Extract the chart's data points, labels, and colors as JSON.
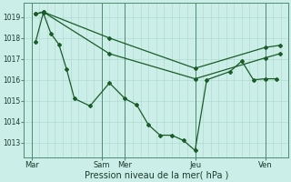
{
  "background_color": "#cceee8",
  "grid_color": "#aad8d0",
  "line_color": "#1a5c28",
  "marker": "D",
  "marker_size": 2.0,
  "line_width": 0.9,
  "xlabel": "Pression niveau de la mer( hPa )",
  "xlabel_fontsize": 7,
  "ytick_labels": [
    "1013",
    "1014",
    "1015",
    "1016",
    "1017",
    "1018",
    "1019"
  ],
  "ytick_vals": [
    1013,
    1014,
    1015,
    1016,
    1017,
    1018,
    1019
  ],
  "ylim": [
    1012.3,
    1019.7
  ],
  "xtick_labels": [
    "Mar",
    "Sam",
    "Mer",
    "Jeu",
    "Ven"
  ],
  "xtick_positions": [
    0,
    72,
    96,
    168,
    240
  ],
  "xlim": [
    -8,
    264
  ],
  "vline_positions": [
    0,
    72,
    96,
    168,
    240
  ],
  "series1_x": [
    4,
    12,
    20,
    28,
    36,
    44,
    60,
    80,
    96,
    108,
    120,
    132,
    144,
    156,
    168,
    180,
    204,
    216,
    228,
    240,
    252
  ],
  "series1_y": [
    1017.8,
    1019.2,
    1018.2,
    1017.7,
    1016.5,
    1015.1,
    1014.75,
    1015.85,
    1015.1,
    1014.8,
    1013.85,
    1013.35,
    1013.35,
    1013.1,
    1012.62,
    1016.0,
    1016.4,
    1016.9,
    1016.0,
    1016.05,
    1016.05
  ],
  "series2_x": [
    4,
    12,
    80,
    168,
    240,
    255
  ],
  "series2_y": [
    1019.15,
    1019.25,
    1018.0,
    1016.55,
    1017.55,
    1017.65
  ],
  "series3_x": [
    4,
    12,
    80,
    168,
    240,
    255
  ],
  "series3_y": [
    1019.15,
    1019.25,
    1017.25,
    1016.05,
    1017.05,
    1017.25
  ],
  "tick_fontsize": 5.5,
  "vline_color": "#4d8c6e",
  "grid_minor_color": "#bbddd8"
}
